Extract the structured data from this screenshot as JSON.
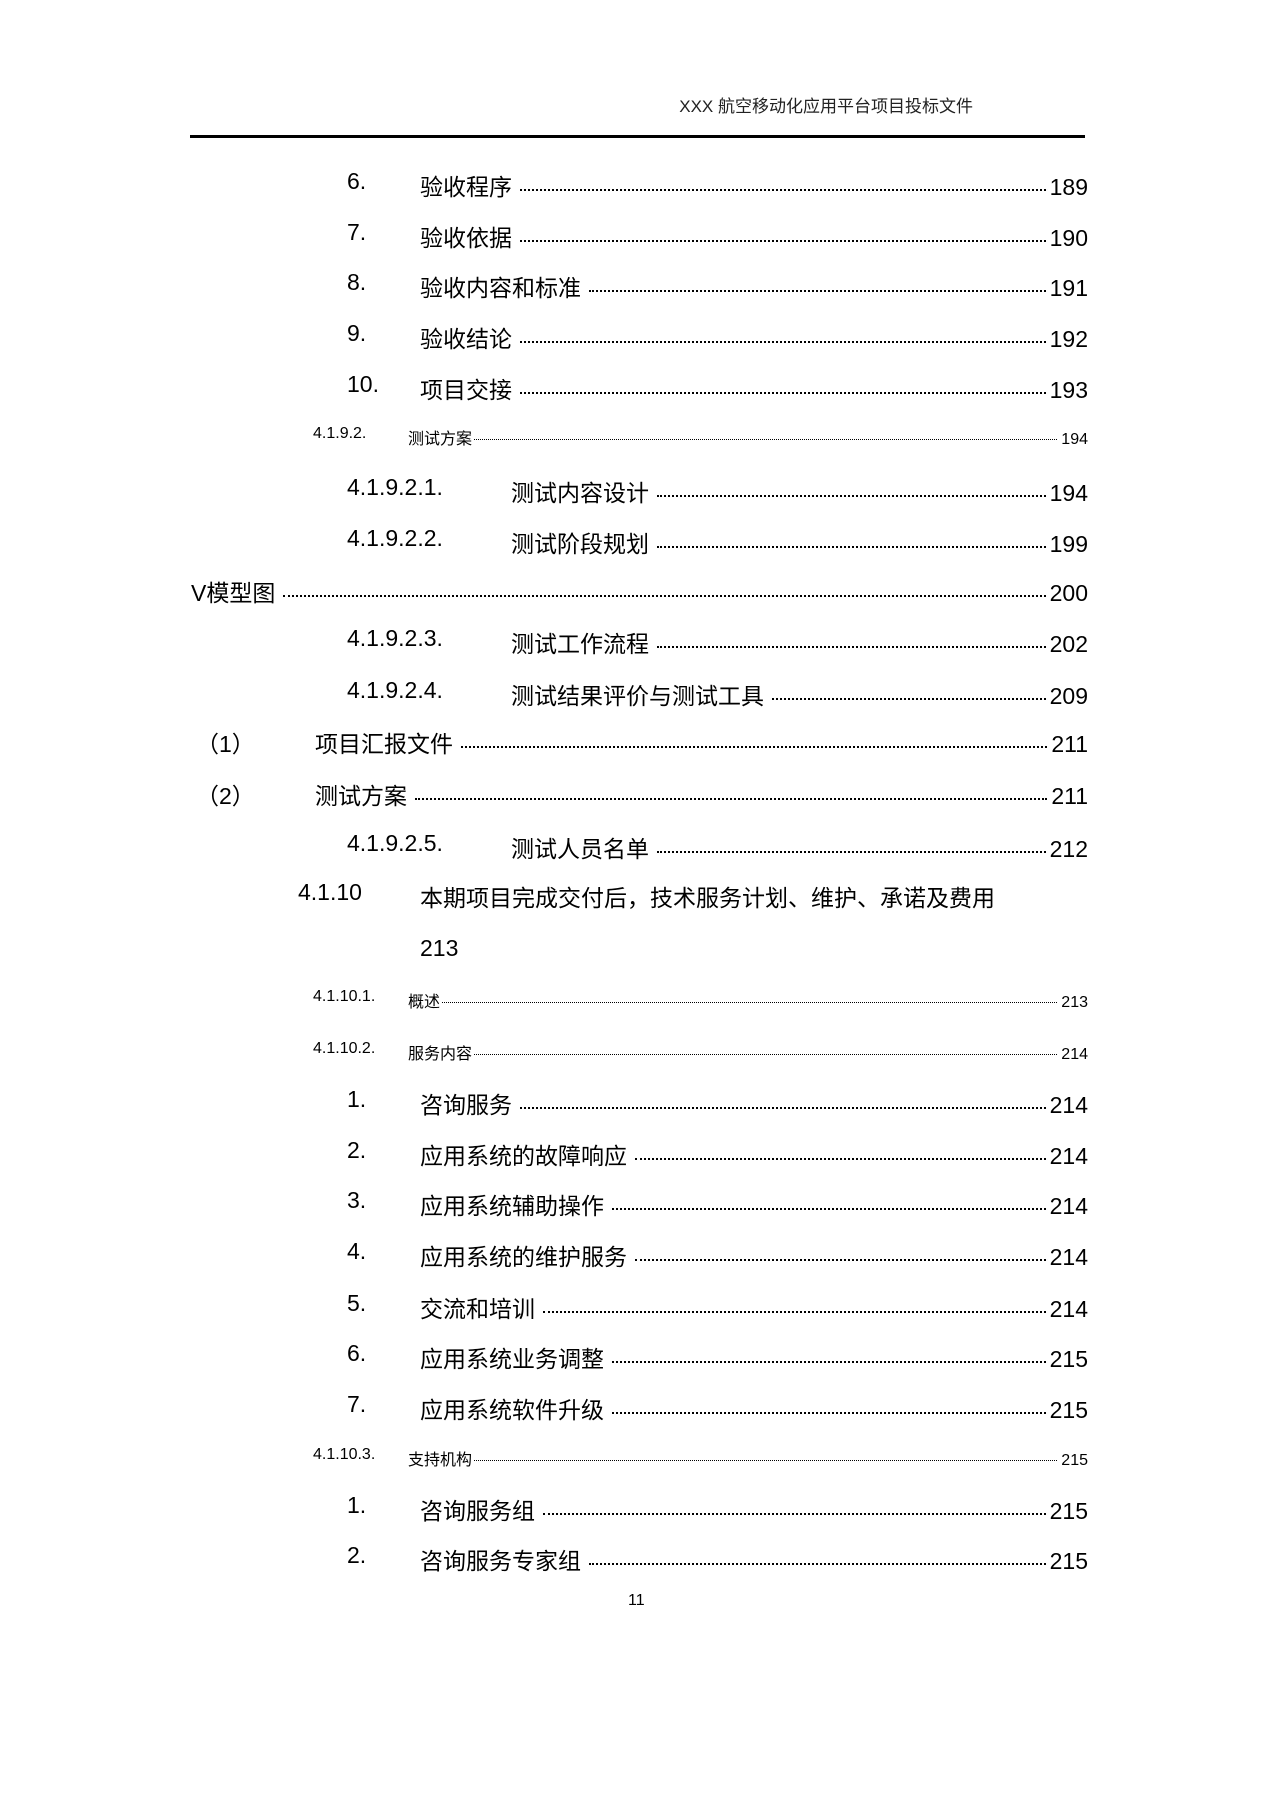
{
  "header": {
    "title": "XXX 航空移动化应用平台项目投标文件"
  },
  "entries": [
    {
      "num": "6.",
      "title": "验收程序",
      "page": "189",
      "level": "item"
    },
    {
      "num": "7.",
      "title": "验收依据",
      "page": "190",
      "level": "item"
    },
    {
      "num": "8.",
      "title": "验收内容和标准",
      "page": "191",
      "level": "item"
    },
    {
      "num": "9.",
      "title": "验收结论",
      "page": "192",
      "level": "item"
    },
    {
      "num": "10.",
      "title": "项目交接",
      "page": "193",
      "level": "item"
    },
    {
      "num": "4.1.9.2.",
      "title": "测试方案",
      "page": "194",
      "level": "small"
    },
    {
      "num": "4.1.9.2.1.",
      "title": "测试内容设计",
      "page": "194",
      "level": "sub"
    },
    {
      "num": "4.1.9.2.2.",
      "title": "测试阶段规划",
      "page": "199",
      "level": "sub"
    },
    {
      "num": "",
      "title": "V模型图",
      "page": "200",
      "level": "root"
    },
    {
      "num": "4.1.9.2.3.",
      "title": "测试工作流程",
      "page": "202",
      "level": "sub"
    },
    {
      "num": "4.1.9.2.4.",
      "title": "测试结果评价与测试工具",
      "page": "209",
      "level": "sub"
    },
    {
      "num": "（1）",
      "title": "项目汇报文件",
      "page": "211",
      "level": "paren"
    },
    {
      "num": "（2）",
      "title": "测试方案",
      "page": "211",
      "level": "paren"
    },
    {
      "num": "4.1.9.2.5.",
      "title": "测试人员名单",
      "page": "212",
      "level": "sub"
    }
  ],
  "long_entry": {
    "num": "4.1.10",
    "title": "本期项目完成交付后，技术服务计划、维护、承诺及费用",
    "page": "213"
  },
  "entries2": [
    {
      "num": "4.1.10.1.",
      "title": "概述",
      "page": "213",
      "level": "small"
    },
    {
      "num": "4.1.10.2.",
      "title": "服务内容",
      "page": "214",
      "level": "small"
    },
    {
      "num": "1.",
      "title": "咨询服务",
      "page": "214",
      "level": "item"
    },
    {
      "num": "2.",
      "title": "应用系统的故障响应",
      "page": "214",
      "level": "item"
    },
    {
      "num": "3.",
      "title": "应用系统辅助操作",
      "page": "214",
      "level": "item"
    },
    {
      "num": "4.",
      "title": "应用系统的维护服务",
      "page": "214",
      "level": "item"
    },
    {
      "num": "5.",
      "title": "交流和培训",
      "page": "214",
      "level": "item"
    },
    {
      "num": "6.",
      "title": "应用系统业务调整",
      "page": "215",
      "level": "item"
    },
    {
      "num": "7.",
      "title": "应用系统软件升级",
      "page": "215",
      "level": "item"
    },
    {
      "num": "4.1.10.3.",
      "title": "支持机构",
      "page": "215",
      "level": "small"
    },
    {
      "num": "1.",
      "title": "咨询服务组",
      "page": "215",
      "level": "item"
    },
    {
      "num": "2.",
      "title": "咨询服务专家组",
      "page": "215",
      "level": "item"
    }
  ],
  "footer": {
    "page_number": "11"
  }
}
